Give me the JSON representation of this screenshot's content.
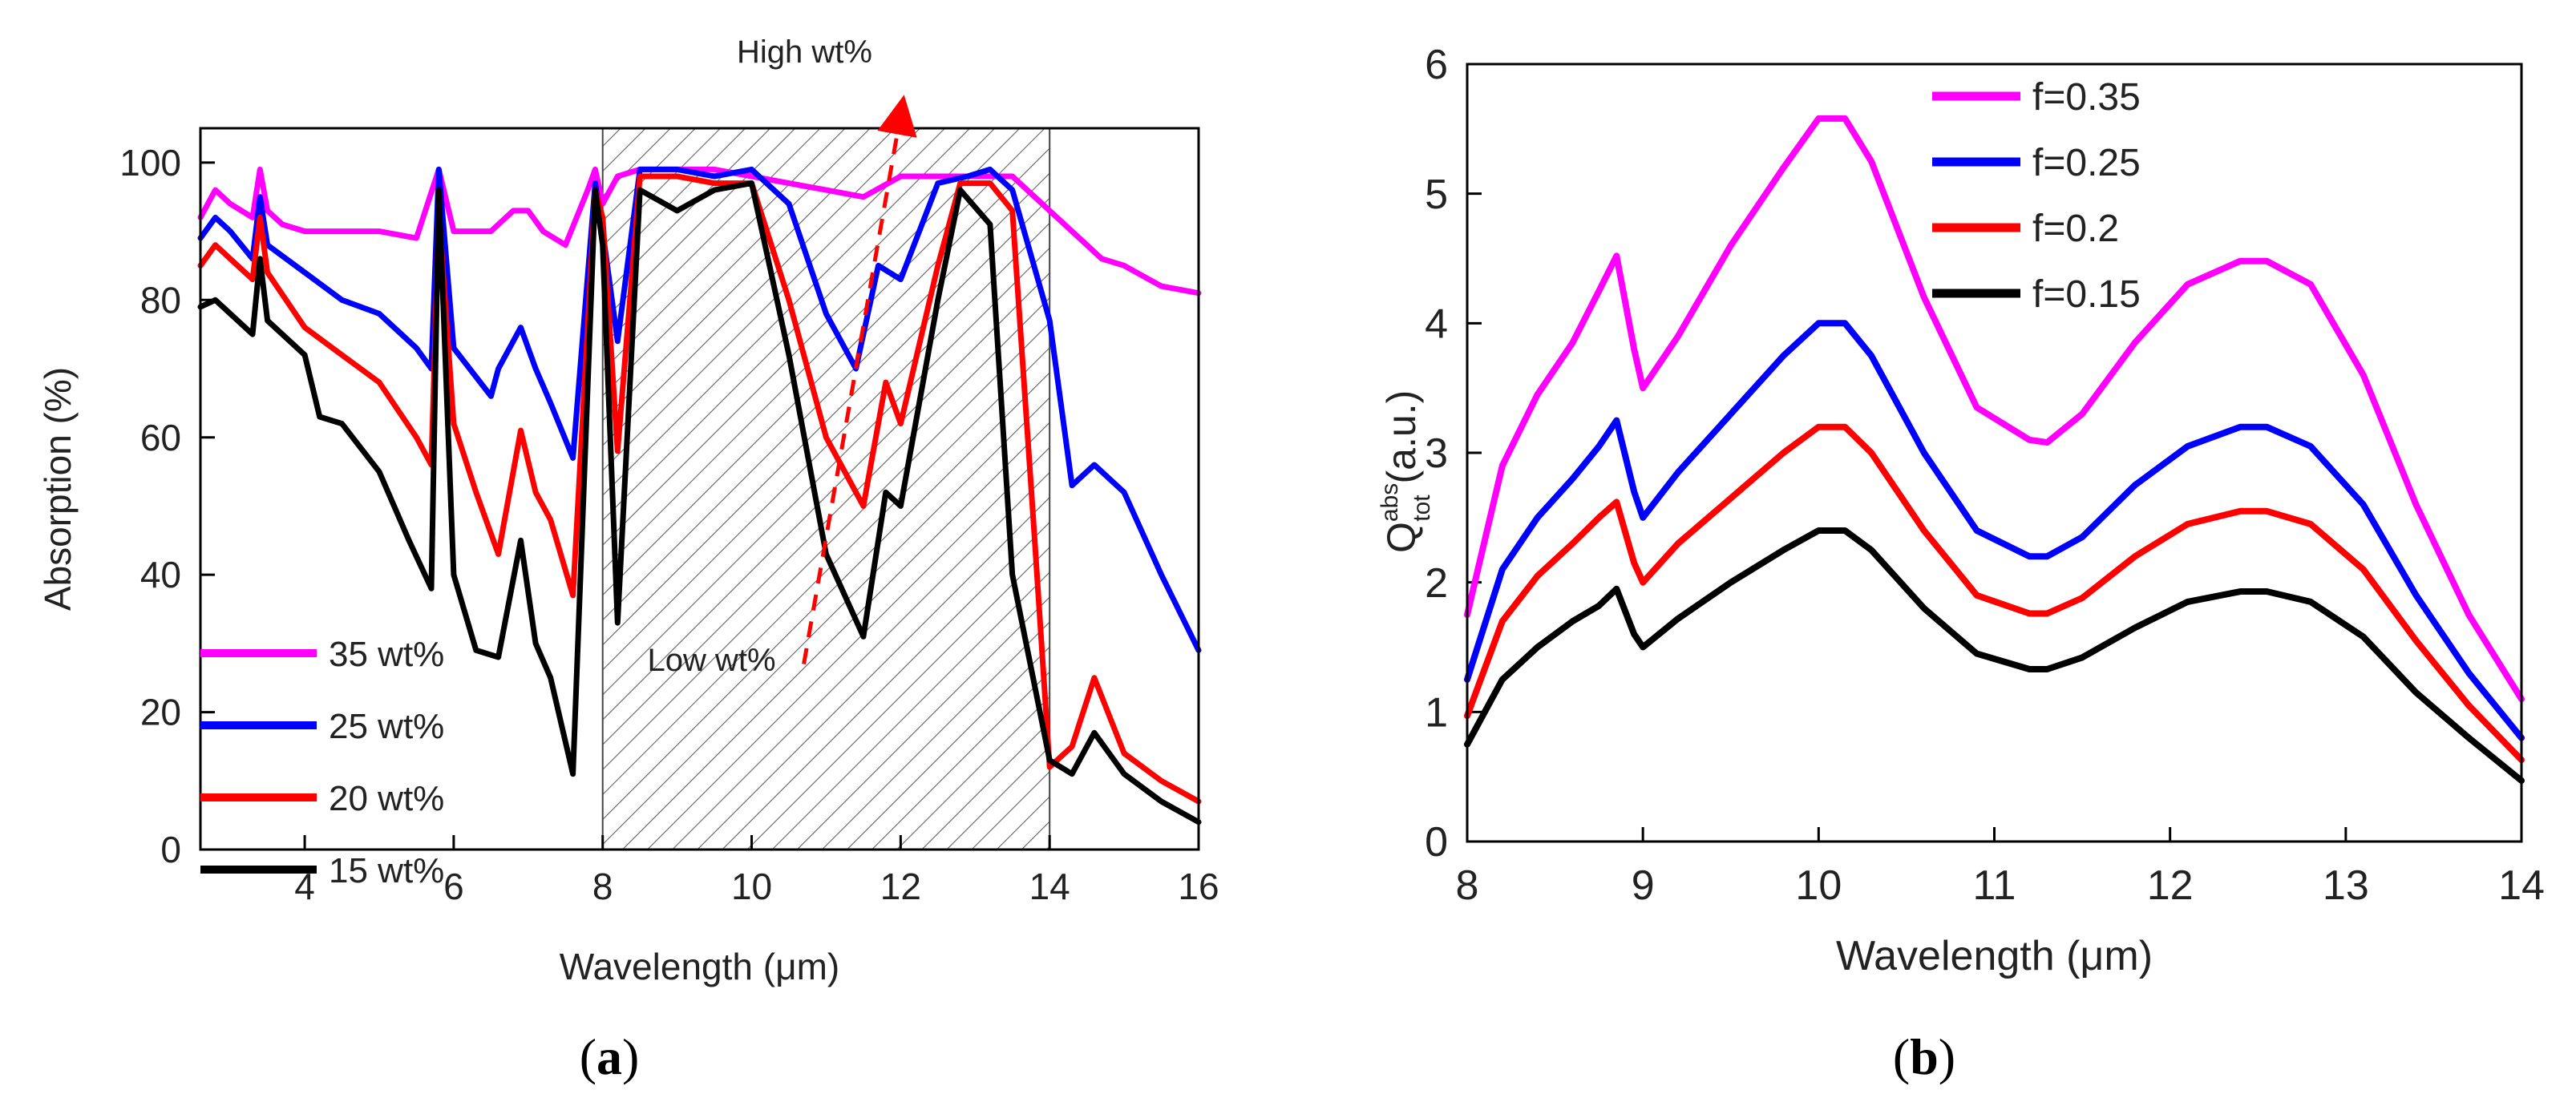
{
  "chart_data": [
    {
      "panel": "(a)",
      "type": "line",
      "caption": "(a)",
      "xlabel": "Wavelength (μm)",
      "ylabel": "Absorption (%)",
      "xlim": [
        2.6,
        16
      ],
      "ylim": [
        0,
        105
      ],
      "xticks": [
        "4",
        "6",
        "8",
        "10",
        "12",
        "14",
        "16"
      ],
      "yticks": [
        "0",
        "20",
        "40",
        "60",
        "80",
        "100"
      ],
      "shaded_region": {
        "x_start": 8,
        "x_end": 14,
        "pattern": "diagonal hatch"
      },
      "annotations": [
        "High wt%",
        "Low wt%"
      ],
      "legend_position": "bottom-left",
      "series": [
        {
          "name": "35 wt%",
          "color": "#ff00ff",
          "x": [
            2.6,
            2.8,
            3.0,
            3.3,
            3.4,
            3.5,
            3.7,
            4.0,
            4.5,
            5.0,
            5.5,
            5.8,
            6.0,
            6.5,
            6.8,
            7.0,
            7.2,
            7.5,
            7.8,
            7.9,
            8.0,
            8.2,
            8.5,
            9.0,
            9.5,
            10.0,
            10.5,
            11.0,
            11.5,
            12.0,
            12.5,
            13.0,
            13.5,
            14.0,
            14.5,
            14.7,
            15.0,
            15.5,
            16.0
          ],
          "y": [
            92,
            96,
            94,
            92,
            99,
            93,
            91,
            90,
            90,
            90,
            89,
            99,
            90,
            90,
            93,
            93,
            90,
            88,
            96,
            99,
            94,
            98,
            99,
            99,
            99,
            98,
            97,
            96,
            95,
            98,
            98,
            98,
            98,
            93,
            88,
            86,
            85,
            82,
            81
          ]
        },
        {
          "name": "25 wt%",
          "color": "#0000ff",
          "x": [
            2.6,
            2.8,
            3.0,
            3.3,
            3.4,
            3.5,
            4.0,
            4.5,
            5.0,
            5.5,
            5.7,
            5.8,
            6.0,
            6.5,
            6.6,
            6.9,
            7.1,
            7.3,
            7.6,
            7.9,
            8.0,
            8.2,
            8.5,
            9.0,
            9.5,
            10.0,
            10.5,
            11.0,
            11.4,
            11.7,
            12.0,
            12.5,
            12.9,
            13.2,
            13.5,
            14.0,
            14.3,
            14.6,
            15.0,
            15.5,
            16.0
          ],
          "y": [
            89,
            92,
            90,
            86,
            95,
            88,
            84,
            80,
            78,
            73,
            70,
            99,
            73,
            66,
            70,
            76,
            70,
            65,
            57,
            97,
            90,
            74,
            99,
            99,
            98,
            99,
            94,
            78,
            70,
            85,
            83,
            97,
            98,
            99,
            96,
            77,
            53,
            56,
            52,
            40,
            29
          ]
        },
        {
          "name": "20 wt%",
          "color": "#ff0000",
          "x": [
            2.6,
            2.8,
            3.0,
            3.3,
            3.4,
            3.5,
            4.0,
            4.5,
            5.0,
            5.5,
            5.7,
            5.8,
            6.0,
            6.3,
            6.6,
            6.9,
            7.1,
            7.3,
            7.6,
            7.9,
            8.0,
            8.2,
            8.5,
            9.0,
            9.5,
            10.0,
            10.5,
            11.0,
            11.5,
            11.8,
            12.0,
            12.5,
            12.8,
            13.2,
            13.5,
            13.8,
            14.0,
            14.3,
            14.6,
            15.0,
            15.5,
            16.0
          ],
          "y": [
            85,
            88,
            86,
            83,
            92,
            84,
            76,
            72,
            68,
            60,
            56,
            93,
            62,
            52,
            43,
            61,
            52,
            48,
            37,
            96,
            92,
            58,
            98,
            98,
            97,
            97,
            80,
            60,
            50,
            68,
            62,
            85,
            97,
            97,
            93,
            45,
            12,
            15,
            25,
            14,
            10,
            7
          ]
        },
        {
          "name": "15 wt%",
          "color": "#000000",
          "x": [
            2.6,
            2.8,
            3.0,
            3.3,
            3.4,
            3.5,
            4.0,
            4.2,
            4.5,
            5.0,
            5.4,
            5.7,
            5.8,
            6.0,
            6.3,
            6.6,
            6.9,
            7.1,
            7.3,
            7.6,
            7.9,
            8.0,
            8.2,
            8.5,
            9.0,
            9.5,
            10.0,
            10.5,
            11.0,
            11.5,
            11.8,
            12.0,
            12.5,
            12.8,
            13.2,
            13.5,
            14.0,
            14.3,
            14.6,
            15.0,
            15.5,
            16.0
          ],
          "y": [
            79,
            80,
            78,
            75,
            86,
            77,
            72,
            63,
            62,
            55,
            45,
            38,
            96,
            40,
            29,
            28,
            45,
            30,
            25,
            11,
            96,
            88,
            33,
            96,
            93,
            96,
            97,
            72,
            43,
            31,
            52,
            50,
            80,
            96,
            91,
            40,
            13,
            11,
            17,
            11,
            7,
            4
          ]
        }
      ]
    },
    {
      "panel": "(b)",
      "type": "line",
      "caption": "(b)",
      "xlabel": "Wavelength (μm)",
      "ylabel_main": "Q",
      "ylabel_sup": "abs",
      "ylabel_sub": "tot",
      "ylabel_unit": "(a.u.)",
      "xlim": [
        8,
        14
      ],
      "ylim": [
        0,
        6
      ],
      "xticks": [
        "8",
        "9",
        "10",
        "11",
        "12",
        "13",
        "14"
      ],
      "yticks": [
        "0",
        "1",
        "2",
        "3",
        "4",
        "5",
        "6"
      ],
      "legend_position": "top-center",
      "series": [
        {
          "name": "f=0.35",
          "color": "#ff00ff",
          "x": [
            8.0,
            8.2,
            8.4,
            8.6,
            8.75,
            8.85,
            8.95,
            9.0,
            9.2,
            9.5,
            9.8,
            10.0,
            10.15,
            10.3,
            10.6,
            10.9,
            11.2,
            11.3,
            11.5,
            11.8,
            12.1,
            12.4,
            12.55,
            12.8,
            13.1,
            13.4,
            13.7,
            14.0
          ],
          "y": [
            1.75,
            2.9,
            3.45,
            3.85,
            4.25,
            4.52,
            3.8,
            3.5,
            3.9,
            4.6,
            5.2,
            5.58,
            5.58,
            5.25,
            4.2,
            3.35,
            3.1,
            3.08,
            3.3,
            3.85,
            4.3,
            4.48,
            4.48,
            4.3,
            3.6,
            2.6,
            1.75,
            1.1
          ]
        },
        {
          "name": "f=0.25",
          "color": "#0000ff",
          "x": [
            8.0,
            8.2,
            8.4,
            8.6,
            8.75,
            8.85,
            8.95,
            9.0,
            9.2,
            9.5,
            9.8,
            10.0,
            10.15,
            10.3,
            10.6,
            10.9,
            11.2,
            11.3,
            11.5,
            11.8,
            12.1,
            12.4,
            12.55,
            12.8,
            13.1,
            13.4,
            13.7,
            14.0
          ],
          "y": [
            1.25,
            2.1,
            2.5,
            2.8,
            3.05,
            3.25,
            2.7,
            2.5,
            2.85,
            3.3,
            3.75,
            4.0,
            4.0,
            3.75,
            3.0,
            2.4,
            2.2,
            2.2,
            2.35,
            2.75,
            3.05,
            3.2,
            3.2,
            3.05,
            2.6,
            1.9,
            1.3,
            0.8
          ]
        },
        {
          "name": "f=0.2",
          "color": "#ff0000",
          "x": [
            8.0,
            8.2,
            8.4,
            8.6,
            8.75,
            8.85,
            8.95,
            9.0,
            9.2,
            9.5,
            9.8,
            10.0,
            10.15,
            10.3,
            10.6,
            10.9,
            11.2,
            11.3,
            11.5,
            11.8,
            12.1,
            12.4,
            12.55,
            12.8,
            13.1,
            13.4,
            13.7,
            14.0
          ],
          "y": [
            0.97,
            1.7,
            2.05,
            2.3,
            2.5,
            2.62,
            2.15,
            2.0,
            2.3,
            2.65,
            3.0,
            3.2,
            3.2,
            3.0,
            2.4,
            1.9,
            1.76,
            1.76,
            1.88,
            2.2,
            2.45,
            2.55,
            2.55,
            2.45,
            2.1,
            1.55,
            1.05,
            0.63
          ]
        },
        {
          "name": "f=0.15",
          "color": "#000000",
          "x": [
            8.0,
            8.2,
            8.4,
            8.6,
            8.75,
            8.85,
            8.95,
            9.0,
            9.2,
            9.5,
            9.8,
            10.0,
            10.15,
            10.3,
            10.6,
            10.9,
            11.2,
            11.3,
            11.5,
            11.8,
            12.1,
            12.4,
            12.55,
            12.8,
            13.1,
            13.4,
            13.7,
            14.0
          ],
          "y": [
            0.75,
            1.25,
            1.5,
            1.7,
            1.82,
            1.95,
            1.6,
            1.5,
            1.72,
            2.0,
            2.25,
            2.4,
            2.4,
            2.25,
            1.8,
            1.45,
            1.33,
            1.33,
            1.42,
            1.65,
            1.85,
            1.93,
            1.93,
            1.85,
            1.58,
            1.15,
            0.8,
            0.47
          ]
        }
      ]
    }
  ]
}
